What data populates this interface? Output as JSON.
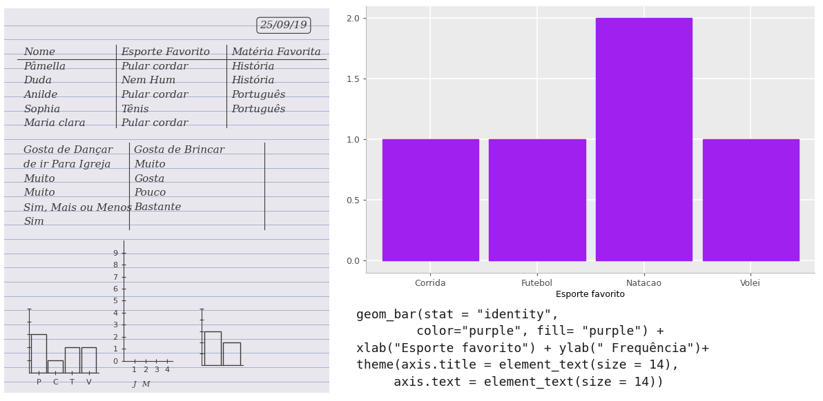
{
  "notebook": {
    "date": "25/09/19",
    "table_1": {
      "header": [
        "Nome",
        "Esporte Favorito",
        "Matéria Favorita"
      ],
      "rows": [
        [
          "Pâmella",
          "Pular cordar",
          "História"
        ],
        [
          "Duda",
          "Nem Hum",
          "História"
        ],
        [
          "Anilde",
          "Pular cordar",
          "Português"
        ],
        [
          "Sophia",
          "Tênis",
          "Português"
        ],
        [
          "Maria clara",
          "Pular cordar",
          null
        ]
      ]
    },
    "table_2": {
      "lines": [
        [
          "Gosta de Dançar",
          "Gosta de Brincar"
        ],
        [
          "de ir Para Igreja",
          "Muito"
        ],
        [
          "Muito",
          "Gosta"
        ],
        [
          "Muito",
          "Pouco"
        ],
        [
          "Sim, Mais ou Menos",
          "Bastante"
        ],
        [
          "Sim",
          null
        ]
      ]
    },
    "sketches": [
      {
        "type": "bar",
        "categories": [
          "P",
          "C",
          "T",
          "V"
        ],
        "values": [
          3,
          1,
          2,
          2
        ],
        "ylim": [
          0,
          5
        ],
        "yticks": [
          1,
          2,
          3,
          4,
          5
        ],
        "tick_labels": "x"
      },
      {
        "type": "axes",
        "xlim": [
          0,
          4.5
        ],
        "xticks": [
          1,
          2,
          3,
          4
        ],
        "ylim": [
          0,
          10
        ],
        "yticks": [
          0,
          1,
          2,
          3,
          4,
          5,
          6,
          7,
          8,
          9
        ],
        "x_sublabels": [
          "J",
          "M"
        ]
      },
      {
        "type": "bar",
        "categories": [
          null,
          null
        ],
        "values": [
          3,
          2
        ],
        "ylim": [
          0,
          5
        ],
        "yticks": [
          1,
          2,
          3,
          4,
          5
        ],
        "tick_labels": false
      }
    ]
  },
  "chart_data": {
    "type": "bar",
    "x_label": "Esporte favorito",
    "categories": [
      "Corrida",
      "Futebol",
      "Natacao",
      "Volei"
    ],
    "values": [
      1,
      1,
      2,
      1
    ],
    "color": "#A020F0",
    "ylim": [
      -0.1,
      2.1
    ],
    "yticks": [
      {
        "value": 0,
        "label": "0.0"
      },
      {
        "value": 0.5,
        "label": "0.5"
      },
      {
        "value": 1,
        "label": "1.0"
      },
      {
        "value": 1.5,
        "label": "1.5"
      },
      {
        "value": 2,
        "label": "2.0"
      }
    ],
    "grid": true
  },
  "code": [
    "geom_bar(stat = \"identity\",",
    "        color=\"purple\", fill= \"purple\") +",
    "xlab(\"Esporte favorito\") + ylab(\" Frequência\")+",
    "theme(axis.title = element_text(size = 14),",
    "     axis.text = element_text(size = 14))"
  ]
}
